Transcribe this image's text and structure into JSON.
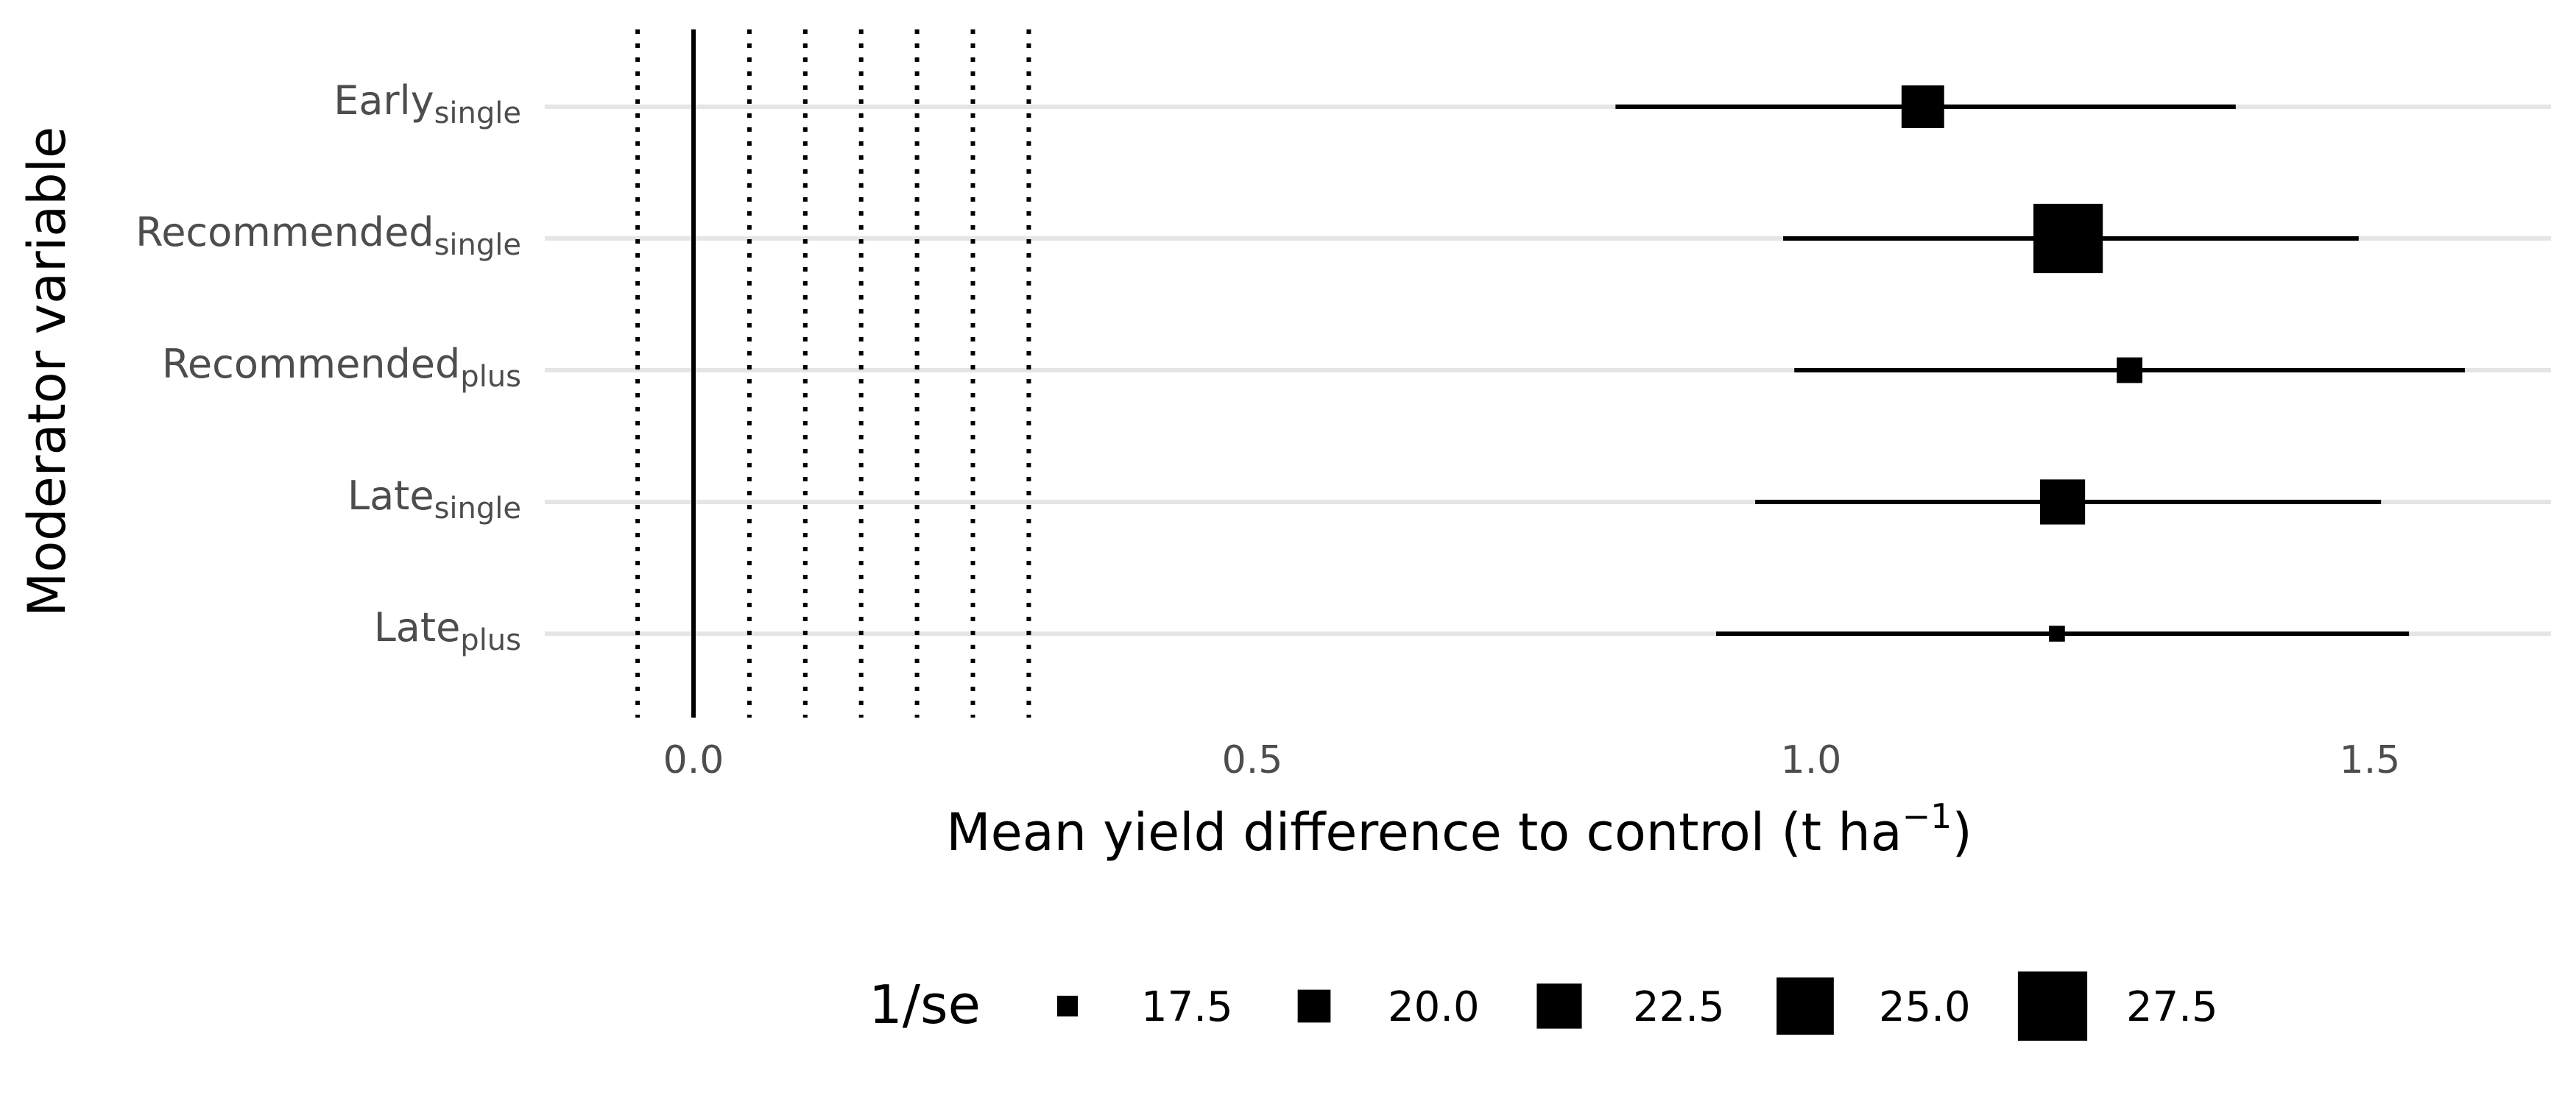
{
  "chart_data": {
    "type": "forest",
    "xlabel_main": "Mean yield difference to control (t ha",
    "xlabel_sup": "−1",
    "xlabel_close": ")",
    "ylabel": "Moderator variable",
    "xlim": [
      -0.13,
      1.6
    ],
    "x_ticks": [
      {
        "value": 0.0,
        "label": "0.0"
      },
      {
        "value": 0.5,
        "label": "0.5"
      },
      {
        "value": 1.0,
        "label": "1.0"
      },
      {
        "value": 1.5,
        "label": "1.5"
      }
    ],
    "solid_reference_line": 0.0,
    "dotted_reference_lines": [
      -0.05,
      0.05,
      0.1,
      0.15,
      0.2,
      0.25,
      0.3
    ],
    "grid": "horizontal",
    "rows": [
      {
        "main": "Early",
        "sub": "single",
        "estimate": 1.1,
        "lower": 0.825,
        "upper": 1.38,
        "inv_se": 22.0
      },
      {
        "main": "Recommended",
        "sub": "single",
        "estimate": 1.23,
        "lower": 0.975,
        "upper": 1.49,
        "inv_se": 27.5
      },
      {
        "main": "Recommended",
        "sub": "plus",
        "estimate": 1.285,
        "lower": 0.985,
        "upper": 1.585,
        "inv_se": 18.5
      },
      {
        "main": "Late",
        "sub": "single",
        "estimate": 1.225,
        "lower": 0.95,
        "upper": 1.51,
        "inv_se": 22.5
      },
      {
        "main": "Late",
        "sub": "plus",
        "estimate": 1.22,
        "lower": 0.915,
        "upper": 1.535,
        "inv_se": 16.5
      }
    ],
    "legend": {
      "title": "1/se",
      "position": "bottom",
      "entries": [
        {
          "value": 17.5,
          "label": "17.5"
        },
        {
          "value": 20.0,
          "label": "20.0"
        },
        {
          "value": 22.5,
          "label": "22.5"
        },
        {
          "value": 25.0,
          "label": "25.0"
        },
        {
          "value": 27.5,
          "label": "27.5"
        }
      ]
    },
    "colors": {
      "marks": "#000000",
      "grid": "#e5e5e5",
      "tick_text": "#4d4d4d"
    }
  }
}
